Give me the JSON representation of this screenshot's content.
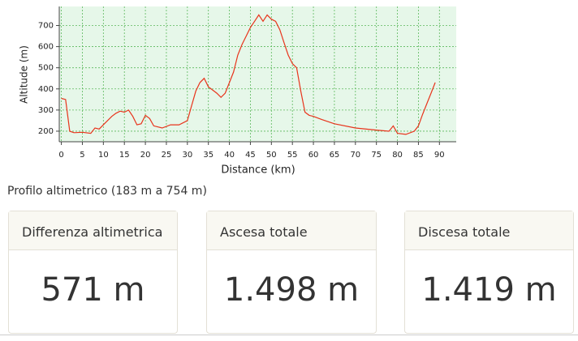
{
  "chart_data": {
    "type": "line",
    "xlabel": "Distance (km)",
    "ylabel": "Altitude (m)",
    "x": [
      0,
      1,
      2,
      3,
      5,
      7,
      8,
      9,
      10,
      12,
      13,
      14,
      15,
      16,
      17,
      18,
      19,
      20,
      21,
      22,
      24,
      26,
      28,
      30,
      31,
      32,
      33,
      34,
      35,
      36,
      37,
      38,
      39,
      40,
      41,
      42,
      43,
      44,
      45,
      46,
      47,
      48,
      49,
      50,
      51,
      52,
      53,
      54,
      55,
      56,
      57,
      58,
      59,
      60,
      62,
      65,
      70,
      75,
      78,
      79,
      80,
      82,
      84,
      85,
      86,
      87,
      88,
      89
    ],
    "values": [
      355,
      350,
      200,
      193,
      195,
      190,
      215,
      210,
      230,
      270,
      285,
      295,
      290,
      300,
      270,
      230,
      235,
      275,
      260,
      225,
      215,
      230,
      230,
      250,
      320,
      390,
      430,
      450,
      410,
      395,
      380,
      360,
      380,
      430,
      480,
      560,
      610,
      650,
      690,
      720,
      750,
      720,
      750,
      730,
      720,
      680,
      620,
      560,
      520,
      500,
      390,
      290,
      275,
      270,
      255,
      235,
      215,
      205,
      200,
      225,
      190,
      185,
      200,
      225,
      280,
      330,
      380,
      430
    ],
    "color": "#e8341c",
    "xlim": [
      -0.5,
      94
    ],
    "xticks": [
      0,
      5,
      10,
      15,
      20,
      25,
      30,
      35,
      40,
      45,
      50,
      55,
      60,
      65,
      70,
      75,
      80,
      85,
      90
    ],
    "ylim": [
      150,
      790
    ],
    "yticks": [
      200,
      300,
      400,
      500,
      600,
      700
    ],
    "grid": true
  },
  "caption": "Profilo altimetrico (183 m a 754 m)",
  "cards": [
    {
      "title": "Differenza altimetrica",
      "value": "571 m"
    },
    {
      "title": "Ascesa totale",
      "value": "1.498 m"
    },
    {
      "title": "Discesa totale",
      "value": "1.419 m"
    }
  ]
}
